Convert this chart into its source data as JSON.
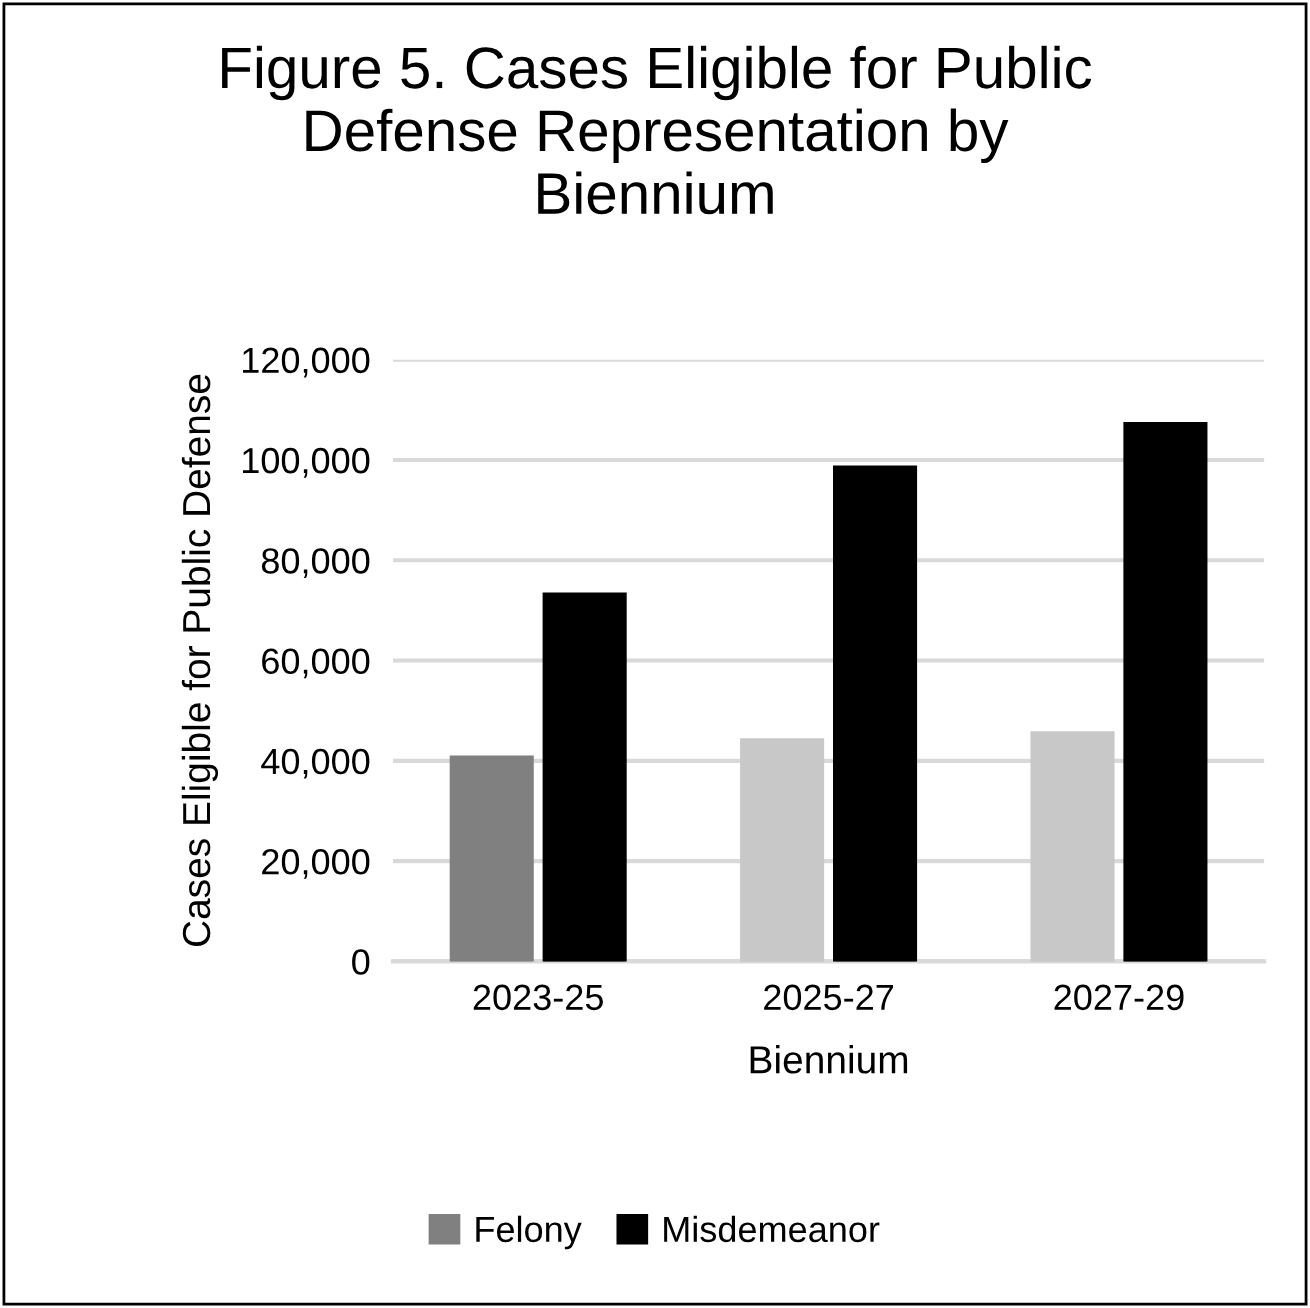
{
  "chart_data": {
    "type": "bar",
    "title": "Figure 5. Cases Eligible for Public\nDefense Representation by\nBiennium",
    "xlabel": "Biennium",
    "ylabel": "Cases Eligible for Public Defense",
    "categories": [
      "2023-25",
      "2025-27",
      "2027-29"
    ],
    "series": [
      {
        "name": "Felony",
        "color": "#808080",
        "colors": [
          "#808080",
          "#c8c8c8",
          "#c8c8c8"
        ],
        "values": [
          40800,
          44200,
          45600
        ]
      },
      {
        "name": "Misdemeanor",
        "color": "#000000",
        "colors": [
          "#000000",
          "#000000",
          "#000000"
        ],
        "values": [
          73300,
          98600,
          107300
        ]
      }
    ],
    "ylim": [
      0,
      120000
    ],
    "yticks": [
      {
        "value": 0,
        "label": "0"
      },
      {
        "value": 20000,
        "label": "20,000"
      },
      {
        "value": 40000,
        "label": "40,000"
      },
      {
        "value": 60000,
        "label": "60,000"
      },
      {
        "value": 80000,
        "label": "80,000"
      },
      {
        "value": 100000,
        "label": "100,000"
      },
      {
        "value": 120000,
        "label": "120,000"
      }
    ],
    "grid": "y",
    "legend": "bottom"
  }
}
